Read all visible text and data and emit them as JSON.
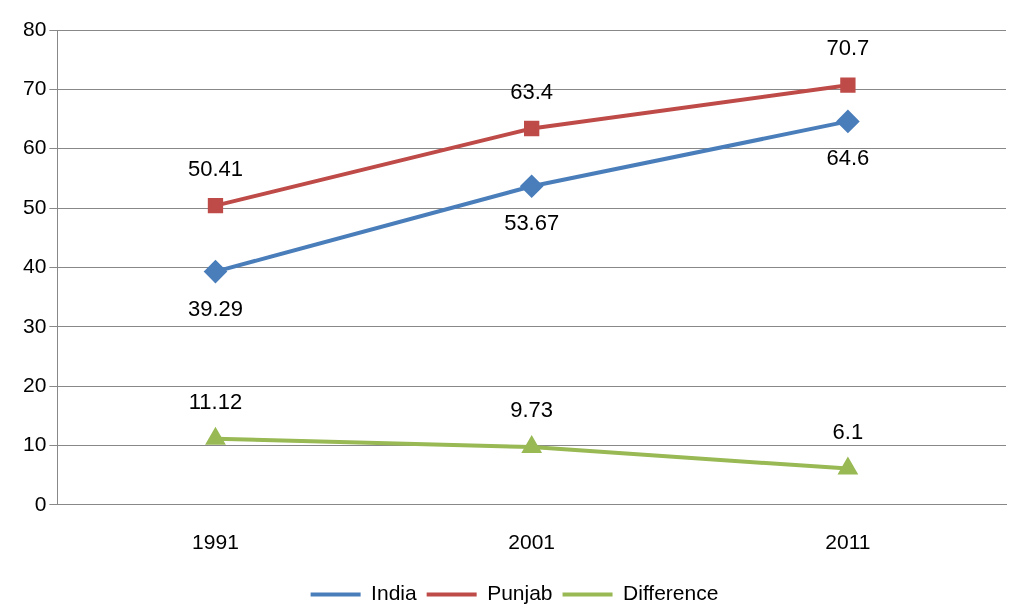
{
  "chart_data": {
    "type": "line",
    "categories": [
      "1991",
      "2001",
      "2011"
    ],
    "series": [
      {
        "name": "India",
        "color": "#4a7ebb",
        "marker": "diamond",
        "values": [
          39.29,
          53.67,
          64.6
        ]
      },
      {
        "name": "Punjab",
        "color": "#be4b48",
        "marker": "square",
        "values": [
          50.41,
          63.4,
          70.7
        ]
      },
      {
        "name": "Difference",
        "color": "#98b954",
        "marker": "triangle",
        "values": [
          11.12,
          9.73,
          6.1
        ]
      }
    ],
    "ylim": [
      0,
      80
    ],
    "yticks": [
      0,
      10,
      20,
      30,
      40,
      50,
      60,
      70,
      80
    ],
    "grid": "y",
    "legend": "bottom",
    "data_labels": true
  }
}
